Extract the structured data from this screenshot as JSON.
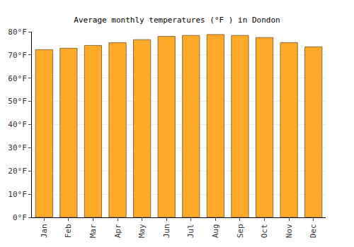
{
  "chart_data": {
    "type": "bar",
    "title": "Average monthly temperatures (°F ) in Dondon",
    "categories": [
      "Jan",
      "Feb",
      "Mar",
      "Apr",
      "May",
      "Jun",
      "Jul",
      "Aug",
      "Sep",
      "Oct",
      "Nov",
      "Dec"
    ],
    "values": [
      72.3,
      72.9,
      74.1,
      75.3,
      76.6,
      78.0,
      78.4,
      78.8,
      78.4,
      77.5,
      75.3,
      73.5
    ],
    "color": "#ffa929",
    "ylim": [
      0,
      80
    ],
    "yticks": [
      {
        "value": 0,
        "label": "0°F"
      },
      {
        "value": 10,
        "label": "10°F"
      },
      {
        "value": 20,
        "label": "20°F"
      },
      {
        "value": 30,
        "label": "30°F"
      },
      {
        "value": 40,
        "label": "40°F"
      },
      {
        "value": 50,
        "label": "50°F"
      },
      {
        "value": 60,
        "label": "60°F"
      },
      {
        "value": 70,
        "label": "70°F"
      },
      {
        "value": 80,
        "label": "80°F"
      }
    ],
    "grid": true
  }
}
